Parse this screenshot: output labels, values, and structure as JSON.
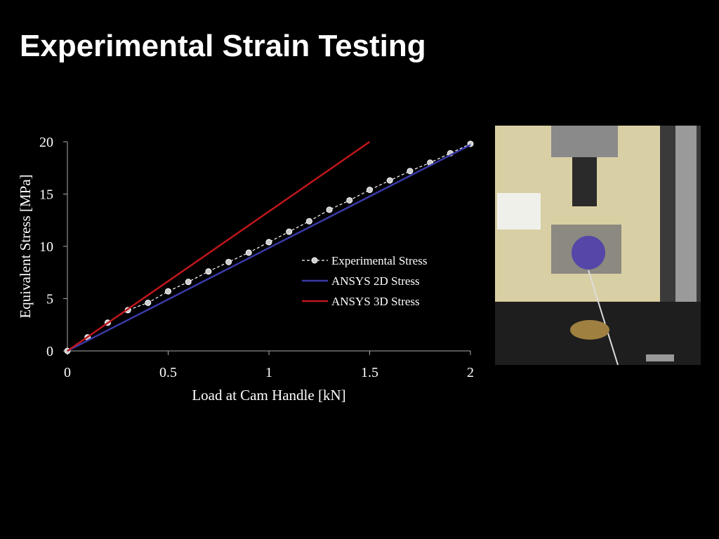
{
  "title": "Experimental Strain Testing",
  "chart_data": {
    "type": "line",
    "xlabel": "Load at Cam Handle [kN]",
    "ylabel": "Equivalent Stress [MPa]",
    "xlim": [
      0,
      2
    ],
    "ylim": [
      0,
      20
    ],
    "xticks": [
      0,
      0.5,
      1,
      1.5,
      2
    ],
    "yticks": [
      0,
      5,
      10,
      15,
      20
    ],
    "series": [
      {
        "name": "Experimental Stress",
        "color": "#ffffff",
        "dashed": true,
        "markers": true,
        "x": [
          0,
          0.1,
          0.2,
          0.3,
          0.4,
          0.5,
          0.6,
          0.7,
          0.8,
          0.9,
          1,
          1.1,
          1.2,
          1.3,
          1.4,
          1.5,
          1.6,
          1.7,
          1.8,
          1.9,
          2
        ],
        "values": [
          0,
          1.3,
          2.7,
          3.9,
          4.6,
          5.7,
          6.6,
          7.6,
          8.5,
          9.4,
          10.4,
          11.4,
          12.4,
          13.5,
          14.4,
          15.4,
          16.3,
          17.2,
          18.0,
          18.9,
          19.8
        ]
      },
      {
        "name": "ANSYS 2D Stress",
        "color": "#3a3aa8",
        "dashed": false,
        "markers": false,
        "x": [
          0,
          2
        ],
        "values": [
          0,
          19.7
        ]
      },
      {
        "name": "ANSYS 3D Stress",
        "color": "#c0161c",
        "dashed": false,
        "markers": false,
        "x": [
          0,
          1.5
        ],
        "values": [
          0,
          20
        ]
      }
    ]
  }
}
